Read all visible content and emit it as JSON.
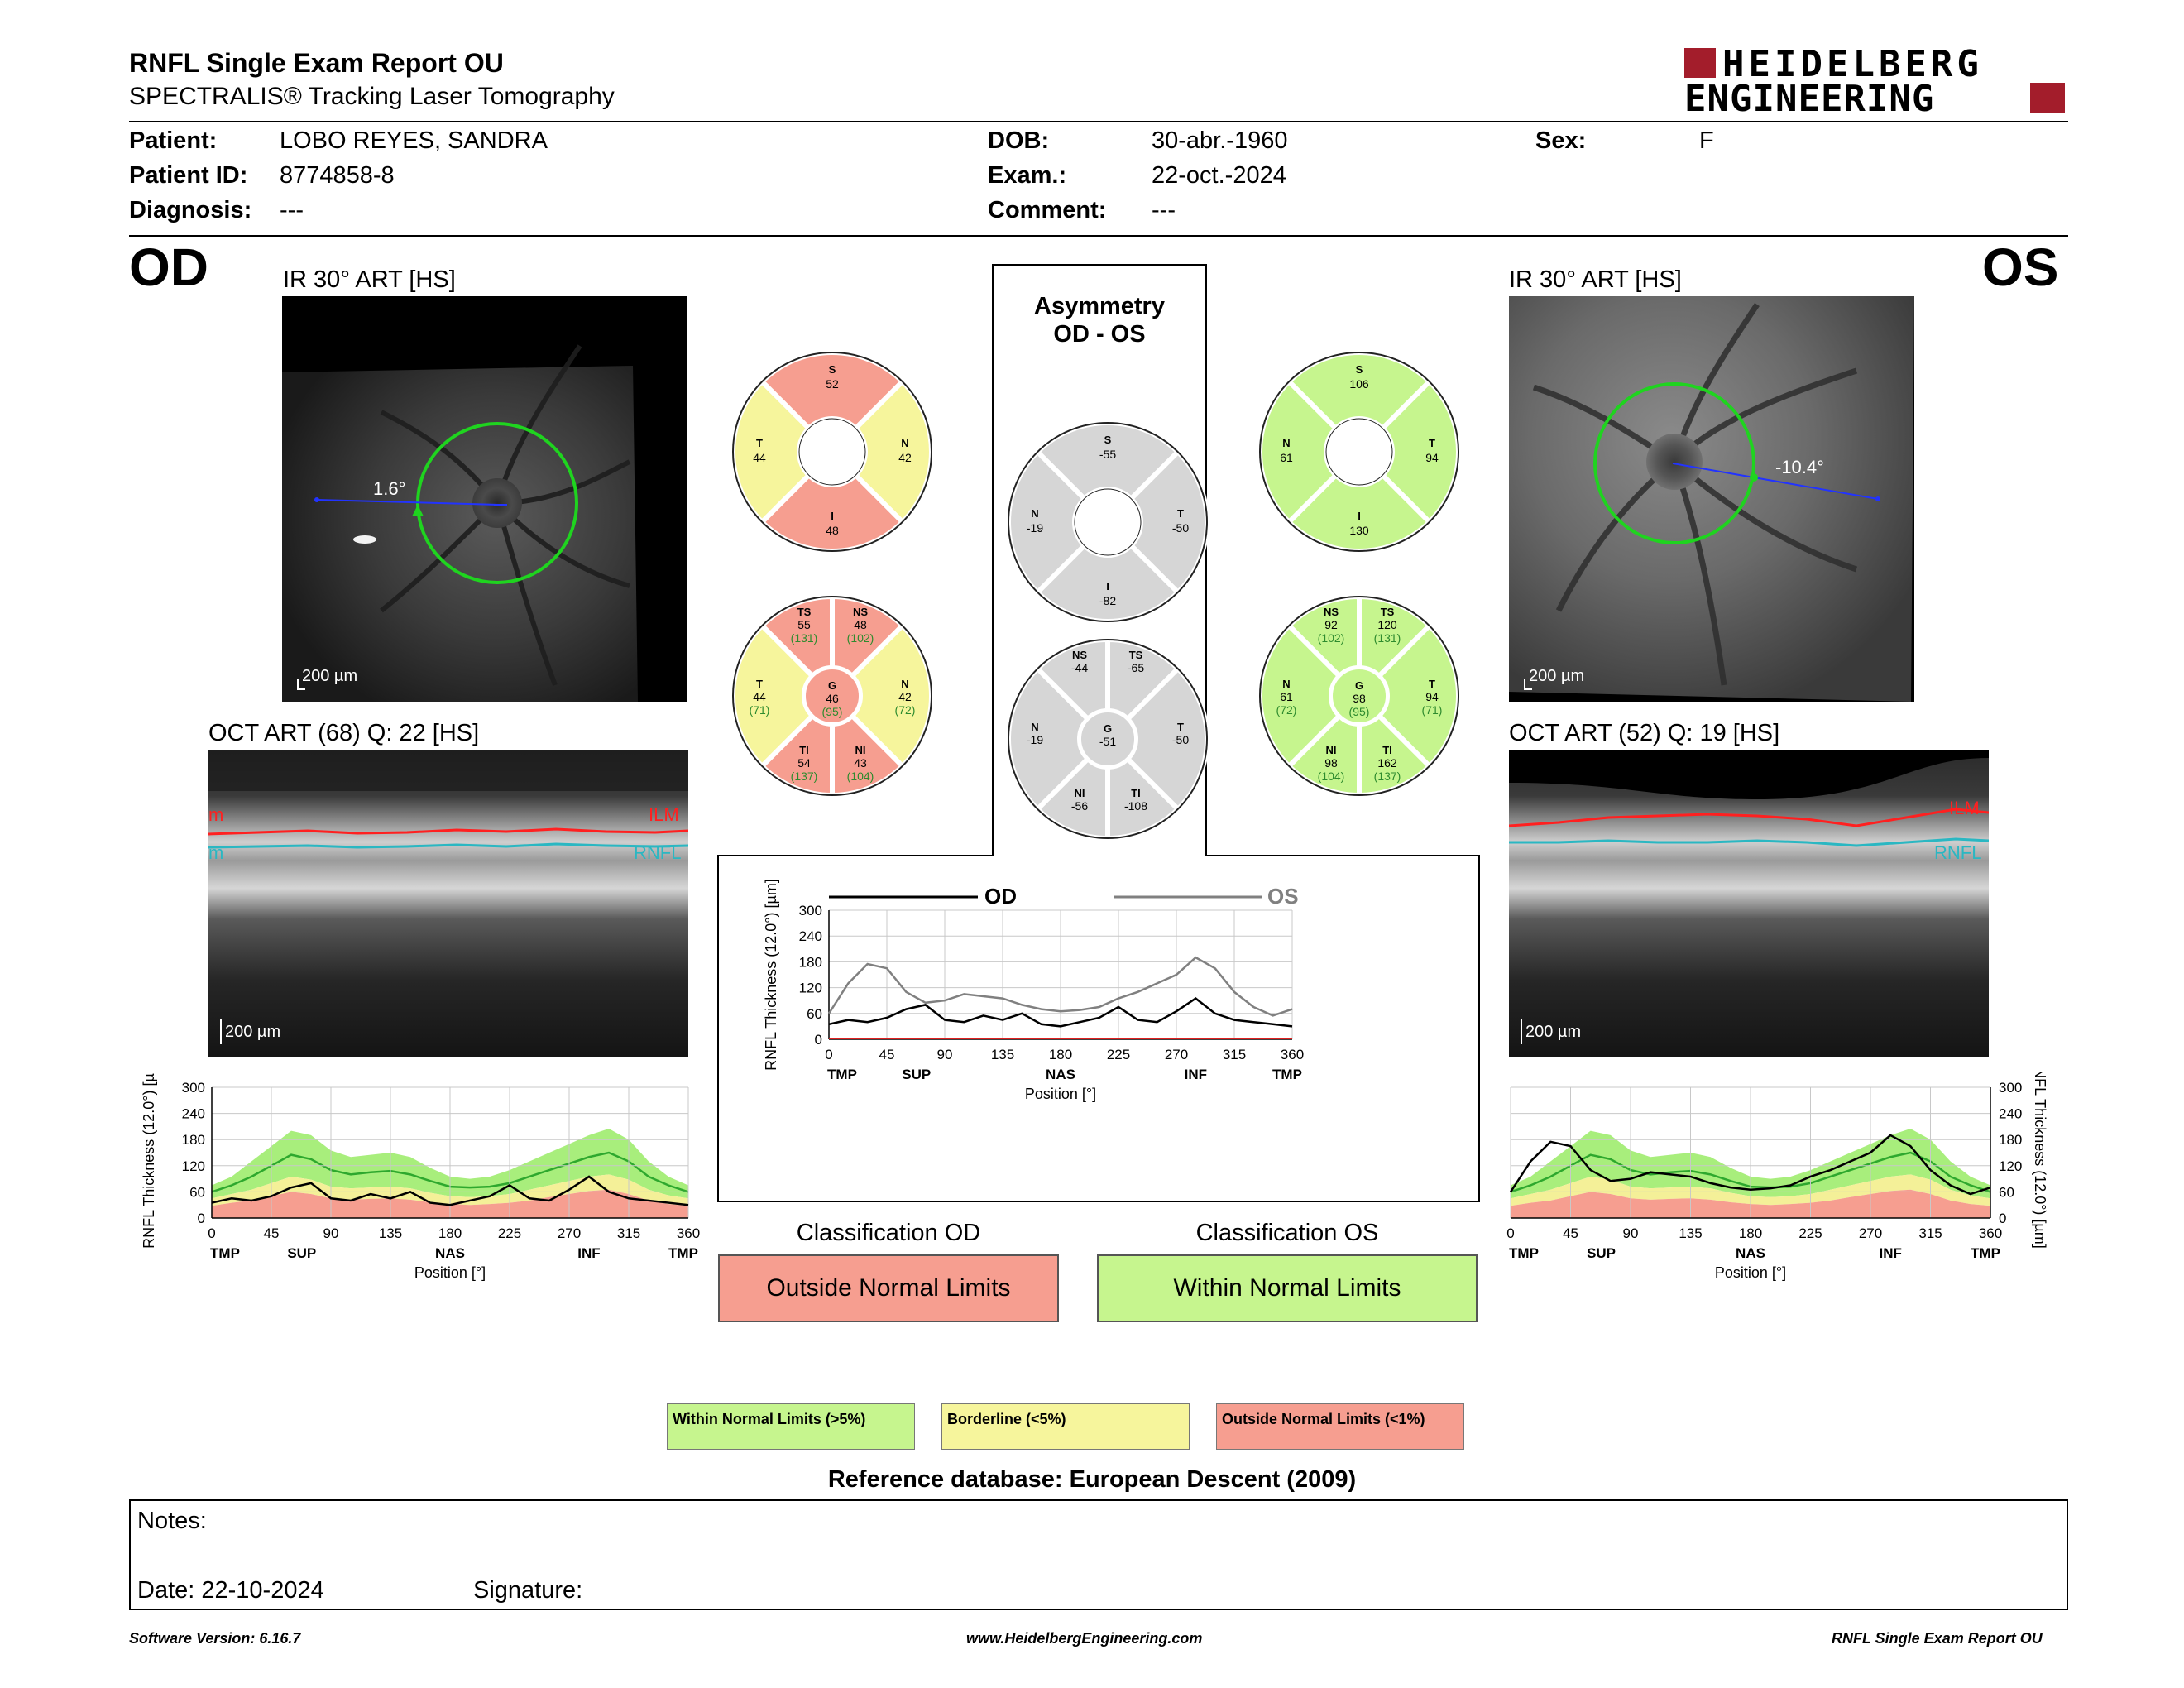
{
  "header": {
    "title": "RNFL Single Exam Report OU",
    "subtitle": "SPECTRALIS® Tracking Laser Tomography",
    "logo_line1": "HEIDELBERG",
    "logo_line2": "ENGINEERING"
  },
  "patient": {
    "patient_label": "Patient:",
    "patient_value": "LOBO REYES, SANDRA",
    "id_label": "Patient ID:",
    "id_value": "8774858-8",
    "diagnosis_label": "Diagnosis:",
    "diagnosis_value": "---",
    "dob_label": "DOB:",
    "dob_value": "30-abr.-1960",
    "exam_label": "Exam.:",
    "exam_value": "22-oct.-2024",
    "comment_label": "Comment:",
    "comment_value": "---",
    "sex_label": "Sex:",
    "sex_value": "F"
  },
  "od": {
    "eye": "OD",
    "ir_caption": "IR 30° ART [HS]",
    "ir_scale": "200 µm",
    "angle": "1.6°",
    "oct_caption": "OCT ART (68) Q: 22 [HS]",
    "oct_scale": "200 µm",
    "ilm": "ILM",
    "rnfl": "RNFL"
  },
  "os": {
    "eye": "OS",
    "ir_caption": "IR 30° ART [HS]",
    "ir_scale": "200 µm",
    "angle": "-10.4°",
    "oct_caption": "OCT ART (52) Q: 19 [HS]",
    "oct_scale": "200 µm",
    "ilm": "ILM",
    "rnfl": "RNFL"
  },
  "colors": {
    "green": "#c6f58e",
    "yellow": "#f6f59c",
    "red": "#f69e90",
    "gray": "#d6d6d6",
    "green_text": "#2e8b2e",
    "od_line": "#000000",
    "os_line": "#808080"
  },
  "sectors": {
    "od_quad": {
      "S": {
        "label": "S",
        "value": "52"
      },
      "T": {
        "label": "T",
        "value": "44"
      },
      "N": {
        "label": "N",
        "value": "42"
      },
      "I": {
        "label": "I",
        "value": "48"
      }
    },
    "os_quad": {
      "S": {
        "label": "S",
        "value": "106"
      },
      "N": {
        "label": "N",
        "value": "61"
      },
      "T": {
        "label": "T",
        "value": "94"
      },
      "I": {
        "label": "I",
        "value": "130"
      }
    },
    "asym_title_1": "Asymmetry",
    "asym_title_2": "OD - OS",
    "asym_quad": {
      "S": {
        "label": "S",
        "value": "-55"
      },
      "N": {
        "label": "N",
        "value": "-19"
      },
      "T": {
        "label": "T",
        "value": "-50"
      },
      "I": {
        "label": "I",
        "value": "-82"
      }
    },
    "od_six": {
      "TS": {
        "label": "TS",
        "value": "55",
        "ref": "(131)"
      },
      "NS": {
        "label": "NS",
        "value": "48",
        "ref": "(102)"
      },
      "T": {
        "label": "T",
        "value": "44",
        "ref": "(71)"
      },
      "G": {
        "label": "G",
        "value": "46",
        "ref": "(95)"
      },
      "N": {
        "label": "N",
        "value": "42",
        "ref": "(72)"
      },
      "TI": {
        "label": "TI",
        "value": "54",
        "ref": "(137)"
      },
      "NI": {
        "label": "NI",
        "value": "43",
        "ref": "(104)"
      }
    },
    "asym_six": {
      "NS": {
        "label": "NS",
        "value": "-44"
      },
      "TS": {
        "label": "TS",
        "value": "-65"
      },
      "N": {
        "label": "N",
        "value": "-19"
      },
      "G": {
        "label": "G",
        "value": "-51"
      },
      "T": {
        "label": "T",
        "value": "-50"
      },
      "NI": {
        "label": "NI",
        "value": "-56"
      },
      "TI": {
        "label": "TI",
        "value": "-108"
      }
    },
    "os_six": {
      "NS": {
        "label": "NS",
        "value": "92",
        "ref": "(102)"
      },
      "TS": {
        "label": "TS",
        "value": "120",
        "ref": "(131)"
      },
      "N": {
        "label": "N",
        "value": "61",
        "ref": "(72)"
      },
      "G": {
        "label": "G",
        "value": "98",
        "ref": "(95)"
      },
      "T": {
        "label": "T",
        "value": "94",
        "ref": "(71)"
      },
      "NI": {
        "label": "NI",
        "value": "98",
        "ref": "(104)"
      },
      "TI": {
        "label": "TI",
        "value": "162",
        "ref": "(137)"
      }
    }
  },
  "chart_data": [
    {
      "type": "line",
      "name": "od-profile",
      "ylabel": "RNFL Thickness (12.0°) [µm]",
      "xlabel": "Position [°]",
      "xlim": [
        0,
        360
      ],
      "ylim": [
        0,
        300
      ],
      "xticks": [
        "0",
        "45",
        "90",
        "135",
        "180",
        "225",
        "270",
        "315",
        "360"
      ],
      "yticks": [
        "0",
        "60",
        "120",
        "180",
        "240",
        "300"
      ],
      "sector_labels": [
        {
          "x": 0,
          "text": "TMP"
        },
        {
          "x": 68,
          "text": "SUP"
        },
        {
          "x": 180,
          "text": "NAS"
        },
        {
          "x": 285,
          "text": "INF"
        },
        {
          "x": 360,
          "text": "TMP"
        }
      ],
      "x": [
        0,
        15,
        30,
        45,
        60,
        75,
        90,
        105,
        120,
        135,
        150,
        165,
        180,
        195,
        210,
        225,
        240,
        255,
        270,
        285,
        300,
        315,
        330,
        345,
        360
      ],
      "normal_mean": [
        60,
        75,
        95,
        120,
        145,
        135,
        110,
        100,
        105,
        108,
        100,
        85,
        72,
        70,
        72,
        80,
        95,
        110,
        125,
        140,
        150,
        130,
        95,
        75,
        60
      ],
      "band_5_upper": [
        75,
        95,
        130,
        165,
        200,
        190,
        155,
        140,
        145,
        150,
        140,
        115,
        95,
        90,
        95,
        110,
        130,
        150,
        170,
        190,
        205,
        180,
        130,
        95,
        75
      ],
      "band_5_lower": [
        45,
        55,
        65,
        80,
        95,
        88,
        72,
        68,
        70,
        72,
        68,
        58,
        50,
        48,
        50,
        55,
        65,
        75,
        85,
        95,
        100,
        88,
        65,
        52,
        45
      ],
      "band_1_lower": [
        28,
        35,
        40,
        50,
        60,
        55,
        45,
        42,
        44,
        45,
        42,
        36,
        32,
        30,
        32,
        35,
        40,
        48,
        55,
        62,
        65,
        55,
        40,
        32,
        28
      ],
      "series": [
        {
          "values": [
            35,
            45,
            40,
            50,
            70,
            80,
            45,
            40,
            55,
            45,
            60,
            35,
            30,
            40,
            50,
            75,
            45,
            40,
            65,
            95,
            60,
            45,
            40,
            35,
            30
          ]
        }
      ]
    },
    {
      "type": "line",
      "name": "os-profile",
      "ylabel": "RNFL Thickness (12.0°) [µm]",
      "xlabel": "Position [°]",
      "xlim": [
        0,
        360
      ],
      "ylim": [
        0,
        300
      ],
      "xticks": [
        "0",
        "45",
        "90",
        "135",
        "180",
        "225",
        "270",
        "315",
        "360"
      ],
      "yticks": [
        "0",
        "60",
        "120",
        "180",
        "240",
        "300"
      ],
      "sector_labels": [
        {
          "x": 0,
          "text": "TMP"
        },
        {
          "x": 68,
          "text": "SUP"
        },
        {
          "x": 180,
          "text": "NAS"
        },
        {
          "x": 285,
          "text": "INF"
        },
        {
          "x": 360,
          "text": "TMP"
        }
      ],
      "x": [
        0,
        15,
        30,
        45,
        60,
        75,
        90,
        105,
        120,
        135,
        150,
        165,
        180,
        195,
        210,
        225,
        240,
        255,
        270,
        285,
        300,
        315,
        330,
        345,
        360
      ],
      "normal_mean": [
        60,
        75,
        95,
        120,
        145,
        135,
        110,
        100,
        105,
        108,
        100,
        85,
        72,
        70,
        72,
        80,
        95,
        110,
        125,
        140,
        150,
        130,
        95,
        75,
        60
      ],
      "band_5_upper": [
        75,
        95,
        130,
        165,
        200,
        190,
        155,
        140,
        145,
        150,
        140,
        115,
        95,
        90,
        95,
        110,
        130,
        150,
        170,
        190,
        205,
        180,
        130,
        95,
        75
      ],
      "band_5_lower": [
        45,
        55,
        65,
        80,
        95,
        88,
        72,
        68,
        70,
        72,
        68,
        58,
        50,
        48,
        50,
        55,
        65,
        75,
        85,
        95,
        100,
        88,
        65,
        52,
        45
      ],
      "band_1_lower": [
        28,
        35,
        40,
        50,
        60,
        55,
        45,
        42,
        44,
        45,
        42,
        36,
        32,
        30,
        32,
        35,
        40,
        48,
        55,
        62,
        65,
        55,
        40,
        32,
        28
      ],
      "series": [
        {
          "values": [
            60,
            130,
            175,
            165,
            110,
            85,
            90,
            105,
            100,
            95,
            80,
            70,
            65,
            68,
            75,
            95,
            110,
            130,
            150,
            190,
            165,
            110,
            75,
            55,
            70
          ]
        }
      ]
    },
    {
      "type": "line",
      "name": "comparison",
      "ylabel": "RNFL Thickness (12.0°) [µm]",
      "xlabel": "Position [°]",
      "xlim": [
        0,
        360
      ],
      "ylim": [
        0,
        300
      ],
      "xticks": [
        "0",
        "45",
        "90",
        "135",
        "180",
        "225",
        "270",
        "315",
        "360"
      ],
      "yticks": [
        "0",
        "60",
        "120",
        "180",
        "240",
        "300"
      ],
      "sector_labels": [
        {
          "x": 0,
          "text": "TMP"
        },
        {
          "x": 68,
          "text": "SUP"
        },
        {
          "x": 180,
          "text": "NAS"
        },
        {
          "x": 285,
          "text": "INF"
        },
        {
          "x": 360,
          "text": "TMP"
        }
      ],
      "x": [
        0,
        15,
        30,
        45,
        60,
        75,
        90,
        105,
        120,
        135,
        150,
        165,
        180,
        195,
        210,
        225,
        240,
        255,
        270,
        285,
        300,
        315,
        330,
        345,
        360
      ],
      "series": [
        {
          "name": "OD",
          "values": [
            35,
            45,
            40,
            50,
            70,
            80,
            45,
            40,
            55,
            45,
            60,
            35,
            30,
            40,
            50,
            75,
            45,
            40,
            65,
            95,
            60,
            45,
            40,
            35,
            30
          ]
        },
        {
          "name": "OS",
          "values": [
            60,
            130,
            175,
            165,
            110,
            85,
            90,
            105,
            100,
            95,
            80,
            70,
            65,
            68,
            75,
            95,
            110,
            130,
            150,
            190,
            165,
            110,
            75,
            55,
            70
          ]
        }
      ]
    }
  ],
  "classification": {
    "od_title": "Classification OD",
    "od_value": "Outside Normal Limits",
    "os_title": "Classification OS",
    "os_value": "Within Normal Limits"
  },
  "legend": {
    "within": "Within Normal Limits (>5%)",
    "borderline": "Borderline (<5%)",
    "outside": "Outside Normal Limits (<1%)"
  },
  "reference": "Reference database: European Descent (2009)",
  "notes": {
    "notes_label": "Notes:",
    "date_label": "Date: 22-10-2024",
    "signature_label": "Signature:"
  },
  "footer": {
    "version": "Software Version: 6.16.7",
    "website": "www.HeidelbergEngineering.com",
    "report": "RNFL Single Exam Report OU"
  }
}
